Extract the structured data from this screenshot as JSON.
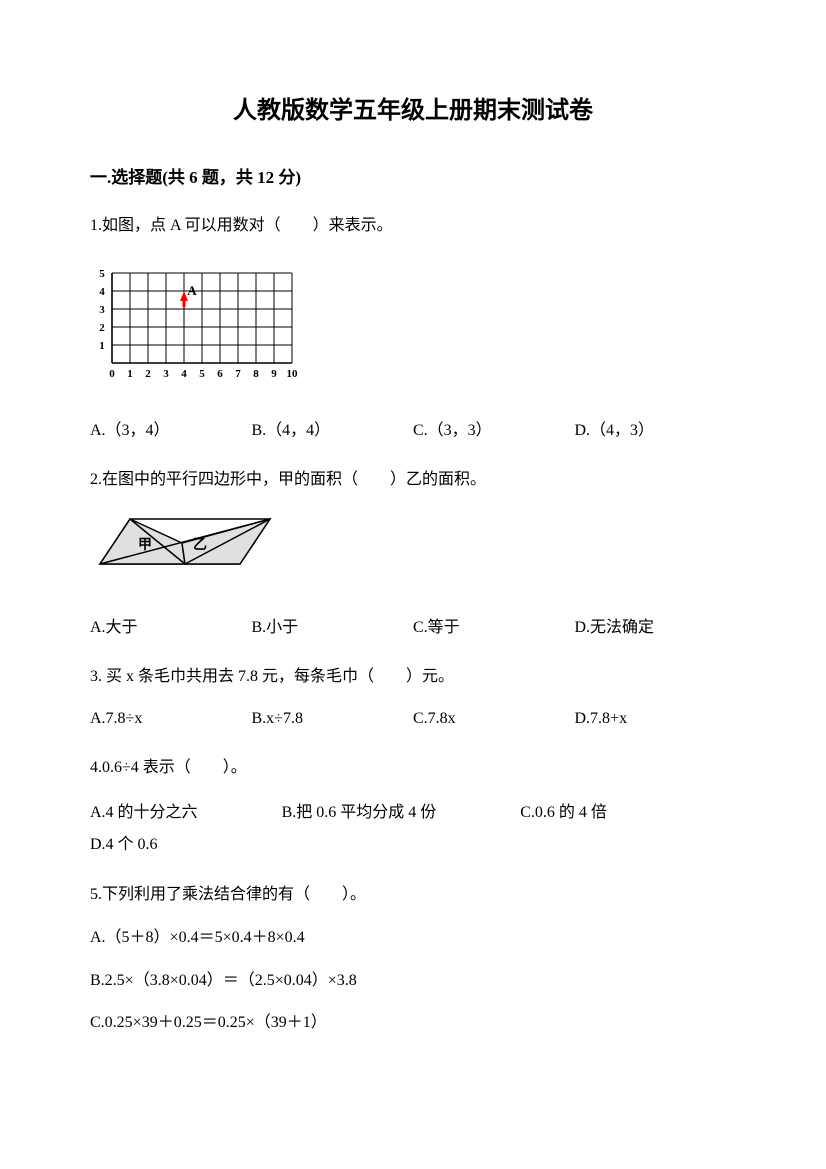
{
  "title": "人教版数学五年级上册期末测试卷",
  "section1": {
    "header": "一.选择题(共 6 题，共 12 分)"
  },
  "q1": {
    "text": "1.如图，点 A 可以用数对（　　）来表示。",
    "optA": "A.（3，4）",
    "optB": "B.（4，4）",
    "optC": "C.（3，3）",
    "optD": "D.（4，3）",
    "grid": {
      "rows": 5,
      "cols": 10,
      "cell": 18,
      "axisColor": "#000000",
      "gridColor": "#000000",
      "pointLabel": "A",
      "pointCol": 4,
      "pointRow": 4,
      "pointColor": "#ff0000"
    }
  },
  "q2": {
    "text": "2.在图中的平行四边形中，甲的面积（　　）乙的面积。",
    "optA": "A.大于",
    "optB": "B.小于",
    "optC": "C.等于",
    "optD": "D.无法确定",
    "fig": {
      "label1": "甲",
      "label2": "乙",
      "stroke": "#000000",
      "fill": "#e0e0e0"
    }
  },
  "q3": {
    "text": "3. 买 x 条毛巾共用去 7.8 元，每条毛巾（　　）元。",
    "optA": "A.7.8÷x",
    "optB": "B.x÷7.8",
    "optC": "C.7.8x",
    "optD": "D.7.8+x"
  },
  "q4": {
    "text": "4.0.6÷4 表示（　　）。",
    "optA": "A.4 的十分之六",
    "optB": "B.把 0.6 平均分成 4 份",
    "optC": "C.0.6 的 4 倍",
    "optD": "D.4 个 0.6"
  },
  "q5": {
    "text": "5.下列利用了乘法结合律的有（　　）。",
    "optA": "A.（5＋8）×0.4＝5×0.4＋8×0.4",
    "optB": "B.2.5×（3.8×0.04）＝（2.5×0.04）×3.8",
    "optC": "C.0.25×39＋0.25＝0.25×（39＋1）"
  }
}
